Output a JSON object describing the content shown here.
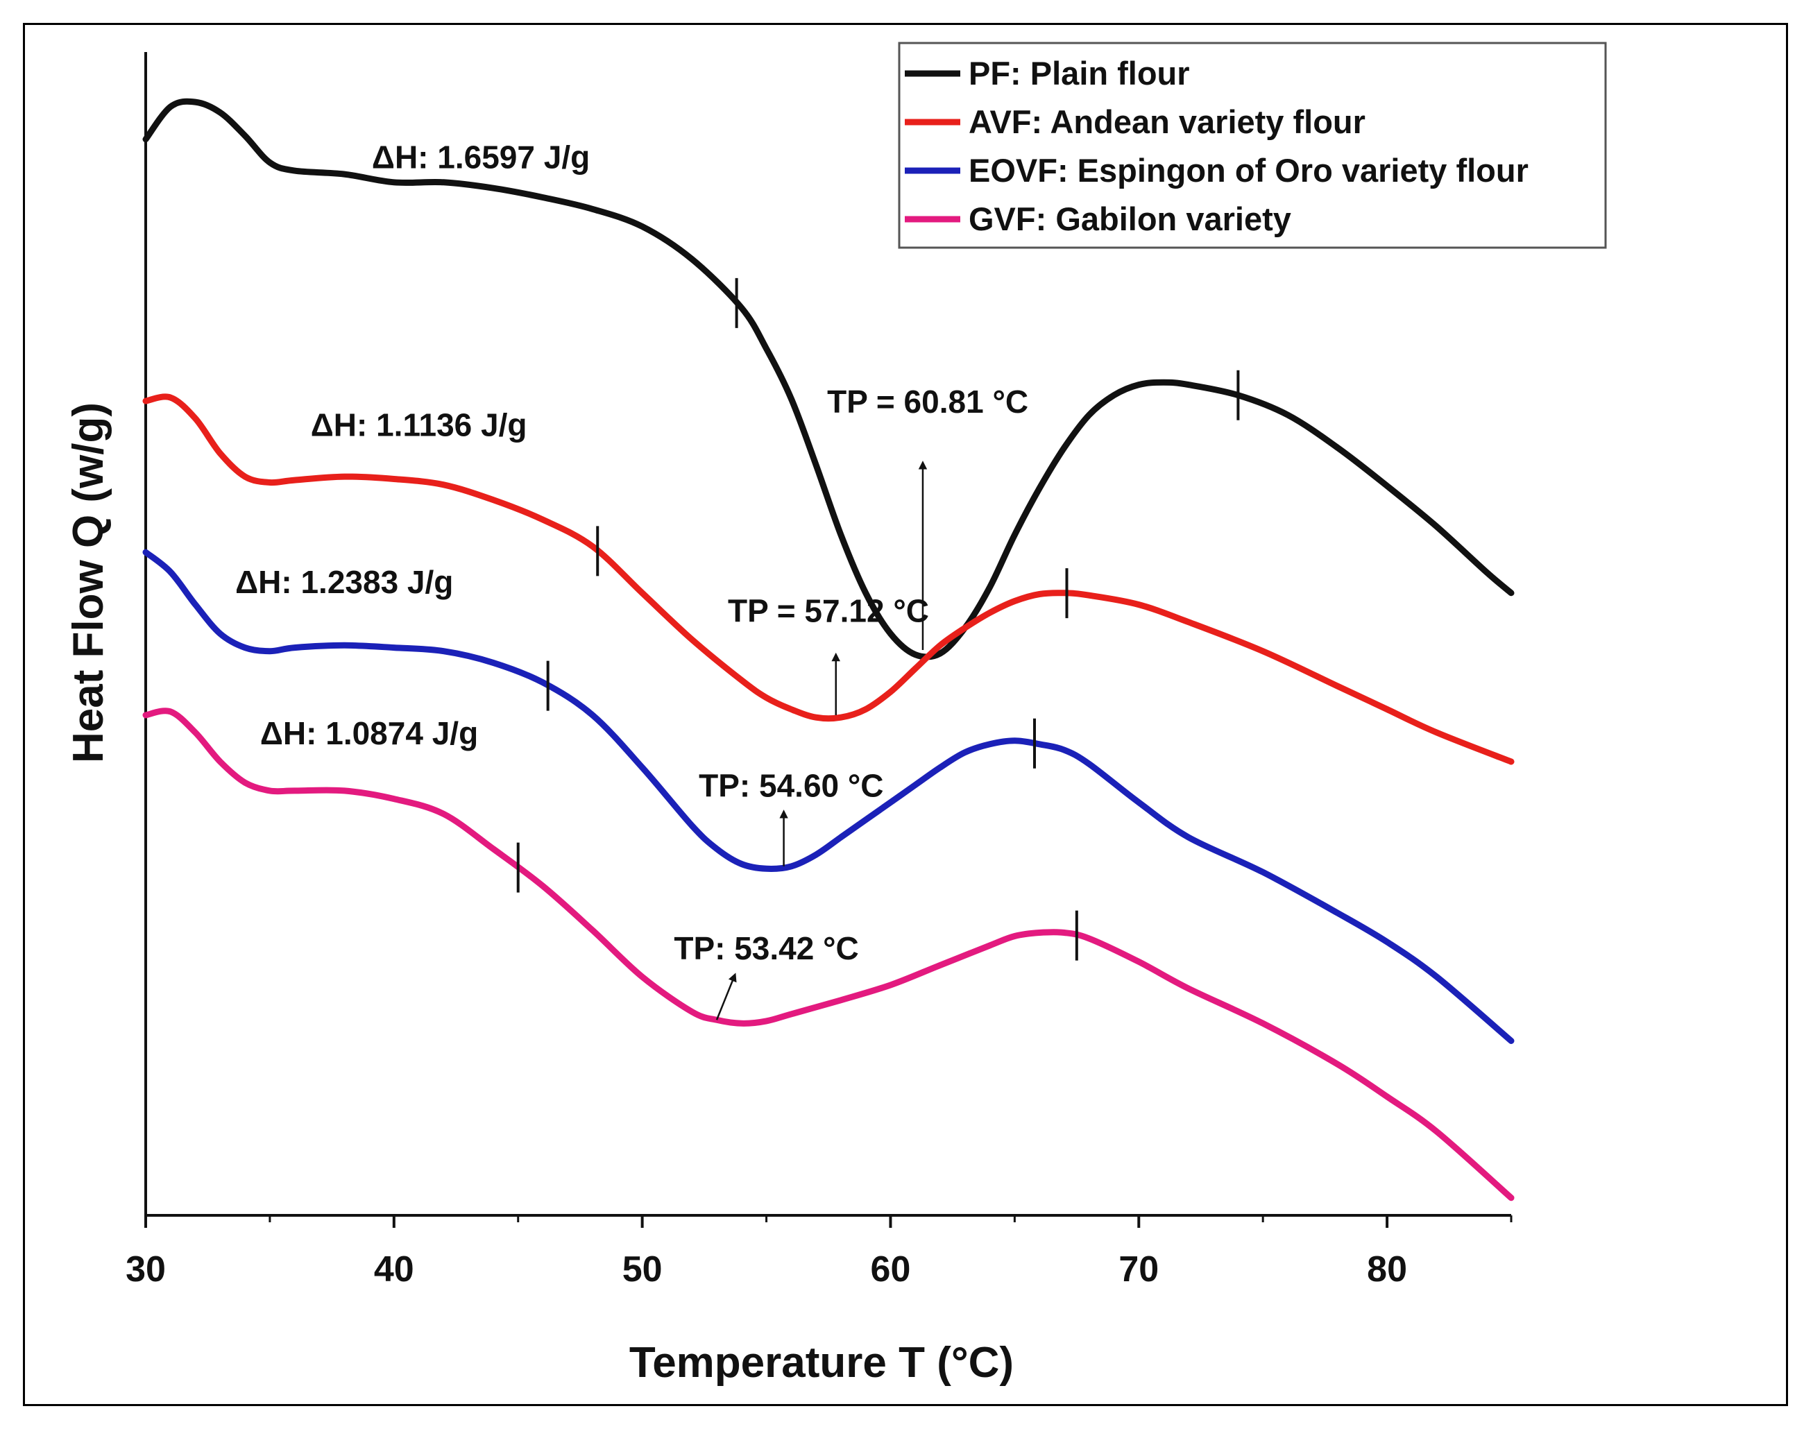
{
  "chart_data": {
    "type": "line",
    "title": "",
    "xlabel": "Temperature T (°C)",
    "ylabel": "Heat Flow Q (w/g)",
    "xlim": [
      30,
      85
    ],
    "ylim": [
      0,
      100
    ],
    "xticks": [
      30,
      40,
      50,
      60,
      70,
      80
    ],
    "legend_position": "top-right",
    "series": [
      {
        "name": "PF: Plain flour",
        "color": "#111111",
        "x": [
          30,
          31,
          32,
          33,
          34,
          35,
          36,
          38,
          40,
          42,
          44,
          46,
          48,
          50,
          52,
          54,
          55,
          56,
          57,
          58,
          59,
          60,
          61,
          62,
          63,
          64,
          65,
          66,
          67,
          68,
          69,
          70,
          71,
          72,
          74,
          76,
          78,
          80,
          82,
          84,
          85
        ],
        "y": [
          92.5,
          95.3,
          95.7,
          94.8,
          92.8,
          90.5,
          89.8,
          89.5,
          88.8,
          88.8,
          88.3,
          87.5,
          86.5,
          85.0,
          82.2,
          78.0,
          74.5,
          70.2,
          64.5,
          58.5,
          53.5,
          50.0,
          48.2,
          48.3,
          50.5,
          54.0,
          58.5,
          62.5,
          66.0,
          68.8,
          70.5,
          71.4,
          71.6,
          71.4,
          70.5,
          68.8,
          66.0,
          62.7,
          59.2,
          55.3,
          53.5
        ]
      },
      {
        "name": "AVF: Andean variety flour",
        "color": "#e8201b",
        "x": [
          30,
          31,
          32,
          33,
          34,
          35,
          36,
          38,
          40,
          42,
          44,
          46,
          48,
          50,
          52,
          54,
          55,
          56,
          57,
          58,
          59,
          60,
          61,
          62,
          63,
          64,
          65,
          66,
          67,
          68,
          70,
          72,
          75,
          78,
          80,
          82,
          85
        ],
        "y": [
          70.0,
          70.3,
          68.5,
          65.5,
          63.5,
          63.0,
          63.2,
          63.5,
          63.3,
          62.8,
          61.5,
          59.8,
          57.5,
          53.5,
          49.5,
          46.0,
          44.5,
          43.5,
          42.8,
          42.8,
          43.5,
          45.0,
          47.0,
          49.0,
          50.5,
          51.8,
          52.8,
          53.4,
          53.5,
          53.3,
          52.5,
          51.0,
          48.5,
          45.5,
          43.5,
          41.5,
          39.0
        ]
      },
      {
        "name": "EOVF: Espingon of Oro variety flour",
        "color": "#1b21b8",
        "x": [
          30,
          31,
          32,
          33,
          34,
          35,
          36,
          38,
          40,
          42,
          44,
          46,
          48,
          50,
          52,
          53,
          54,
          55,
          56,
          57,
          58,
          59,
          60,
          61,
          62,
          63,
          64,
          65,
          66,
          67,
          68,
          70,
          72,
          75,
          78,
          80,
          82,
          85
        ],
        "y": [
          57.0,
          55.3,
          52.5,
          50.0,
          48.8,
          48.5,
          48.8,
          49.0,
          48.8,
          48.5,
          47.5,
          45.8,
          43.0,
          38.5,
          33.5,
          31.5,
          30.2,
          29.8,
          30.0,
          31.0,
          32.5,
          34.0,
          35.5,
          37.0,
          38.5,
          39.8,
          40.5,
          40.8,
          40.5,
          40.0,
          38.8,
          35.5,
          32.5,
          29.5,
          26.0,
          23.5,
          20.5,
          15.0
        ]
      },
      {
        "name": "GVF: Gabilon variety",
        "color": "#e31a7f",
        "x": [
          30,
          31,
          32,
          33,
          34,
          35,
          36,
          38,
          40,
          42,
          44,
          46,
          48,
          50,
          52,
          53,
          54,
          55,
          56,
          58,
          60,
          62,
          64,
          65,
          66,
          67,
          68,
          70,
          72,
          75,
          78,
          80,
          82,
          85
        ],
        "y": [
          43.0,
          43.3,
          41.5,
          39.0,
          37.2,
          36.5,
          36.5,
          36.5,
          35.8,
          34.5,
          31.5,
          28.3,
          24.5,
          20.5,
          17.5,
          16.8,
          16.5,
          16.7,
          17.3,
          18.5,
          19.8,
          21.5,
          23.2,
          24.0,
          24.3,
          24.3,
          23.8,
          21.8,
          19.5,
          16.5,
          13.0,
          10.2,
          7.2,
          1.5
        ]
      }
    ],
    "markers": [
      {
        "series": 0,
        "x": [
          53.8,
          74.0
        ]
      },
      {
        "series": 1,
        "x": [
          48.2,
          67.1
        ]
      },
      {
        "series": 2,
        "x": [
          46.2,
          65.8
        ]
      },
      {
        "series": 3,
        "x": [
          45.0,
          67.5
        ]
      }
    ],
    "annotations": [
      {
        "text": "ΔH: 1.6597 J/g",
        "x": 43.5,
        "y": 90.0
      },
      {
        "text": "ΔH: 1.1136 J/g",
        "x": 41.0,
        "y": 67.0
      },
      {
        "text": "ΔH: 1.2383 J/g",
        "x": 38.0,
        "y": 53.5
      },
      {
        "text": "ΔH: 1.0874 J/g",
        "x": 39.0,
        "y": 40.5
      },
      {
        "text": "TP = 60.81 °C",
        "x": 61.5,
        "y": 69.0,
        "arrow": {
          "x": 61.3,
          "y0": 48.6,
          "y1": 64.5
        }
      },
      {
        "text": "TP = 57.12 °C",
        "x": 57.5,
        "y": 51.0,
        "arrow": {
          "x": 57.8,
          "y0": 43.0,
          "y1": 48.0
        }
      },
      {
        "text": "TP: 54.60 °C",
        "x": 56.0,
        "y": 36.0,
        "arrow": {
          "x": 55.7,
          "y0": 30.0,
          "y1": 34.5
        }
      },
      {
        "text": "TP: 53.42 °C",
        "x": 55.0,
        "y": 22.0,
        "arrow": {
          "x": 53.7,
          "y0": 16.8,
          "y1": 20.5,
          "x0": 53.0
        }
      }
    ]
  }
}
